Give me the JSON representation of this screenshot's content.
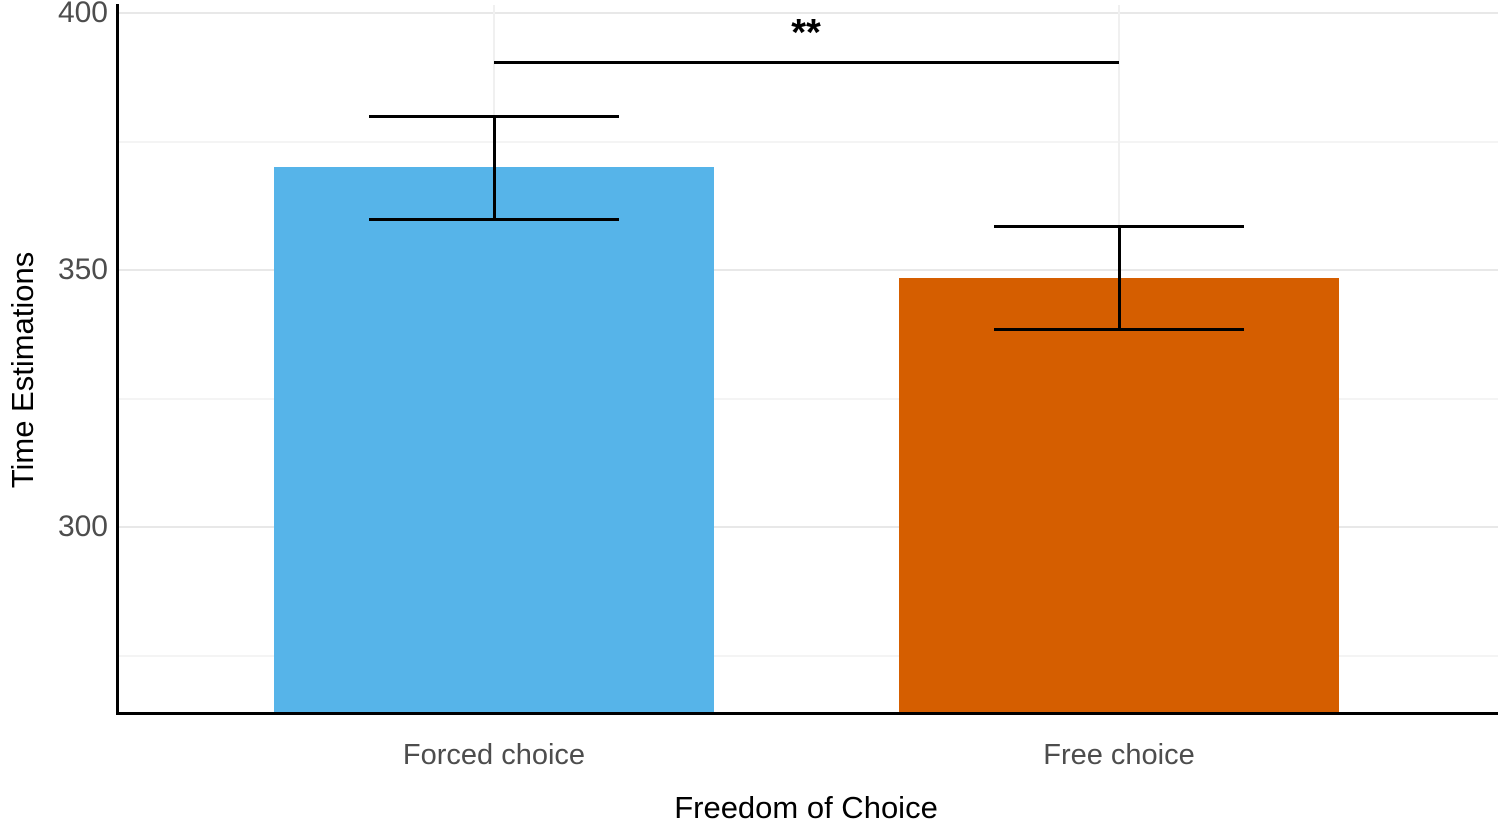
{
  "chart_data": {
    "type": "bar",
    "title": "",
    "xlabel": "Freedom of Choice",
    "ylabel": "Time Estimations",
    "categories": [
      "Forced choice",
      "Free choice"
    ],
    "values": [
      370,
      348.5
    ],
    "error_low": [
      360,
      338.5
    ],
    "error_high": [
      380,
      358.5
    ],
    "bar_colors": [
      "#56B4E9",
      "#D55E00"
    ],
    "yticks": [
      400,
      350,
      300
    ],
    "ytick_labels": [
      "400",
      "350",
      "300"
    ],
    "minor_gridlines": [
      375,
      325,
      275
    ],
    "ylim_visible": [
      264,
      401.5
    ],
    "grid": "horizontal major and minor gridlines, faint; vertical gridline at each category center",
    "legend": "none",
    "significance": {
      "label": "**",
      "from": "Forced choice",
      "to": "Free choice"
    }
  },
  "colors": {
    "bar_forced_choice": "#56B4E9",
    "bar_free_choice": "#D55E00",
    "axis_line": "#000000",
    "tick_label": "#4d4d4d",
    "axis_title": "#000000"
  }
}
